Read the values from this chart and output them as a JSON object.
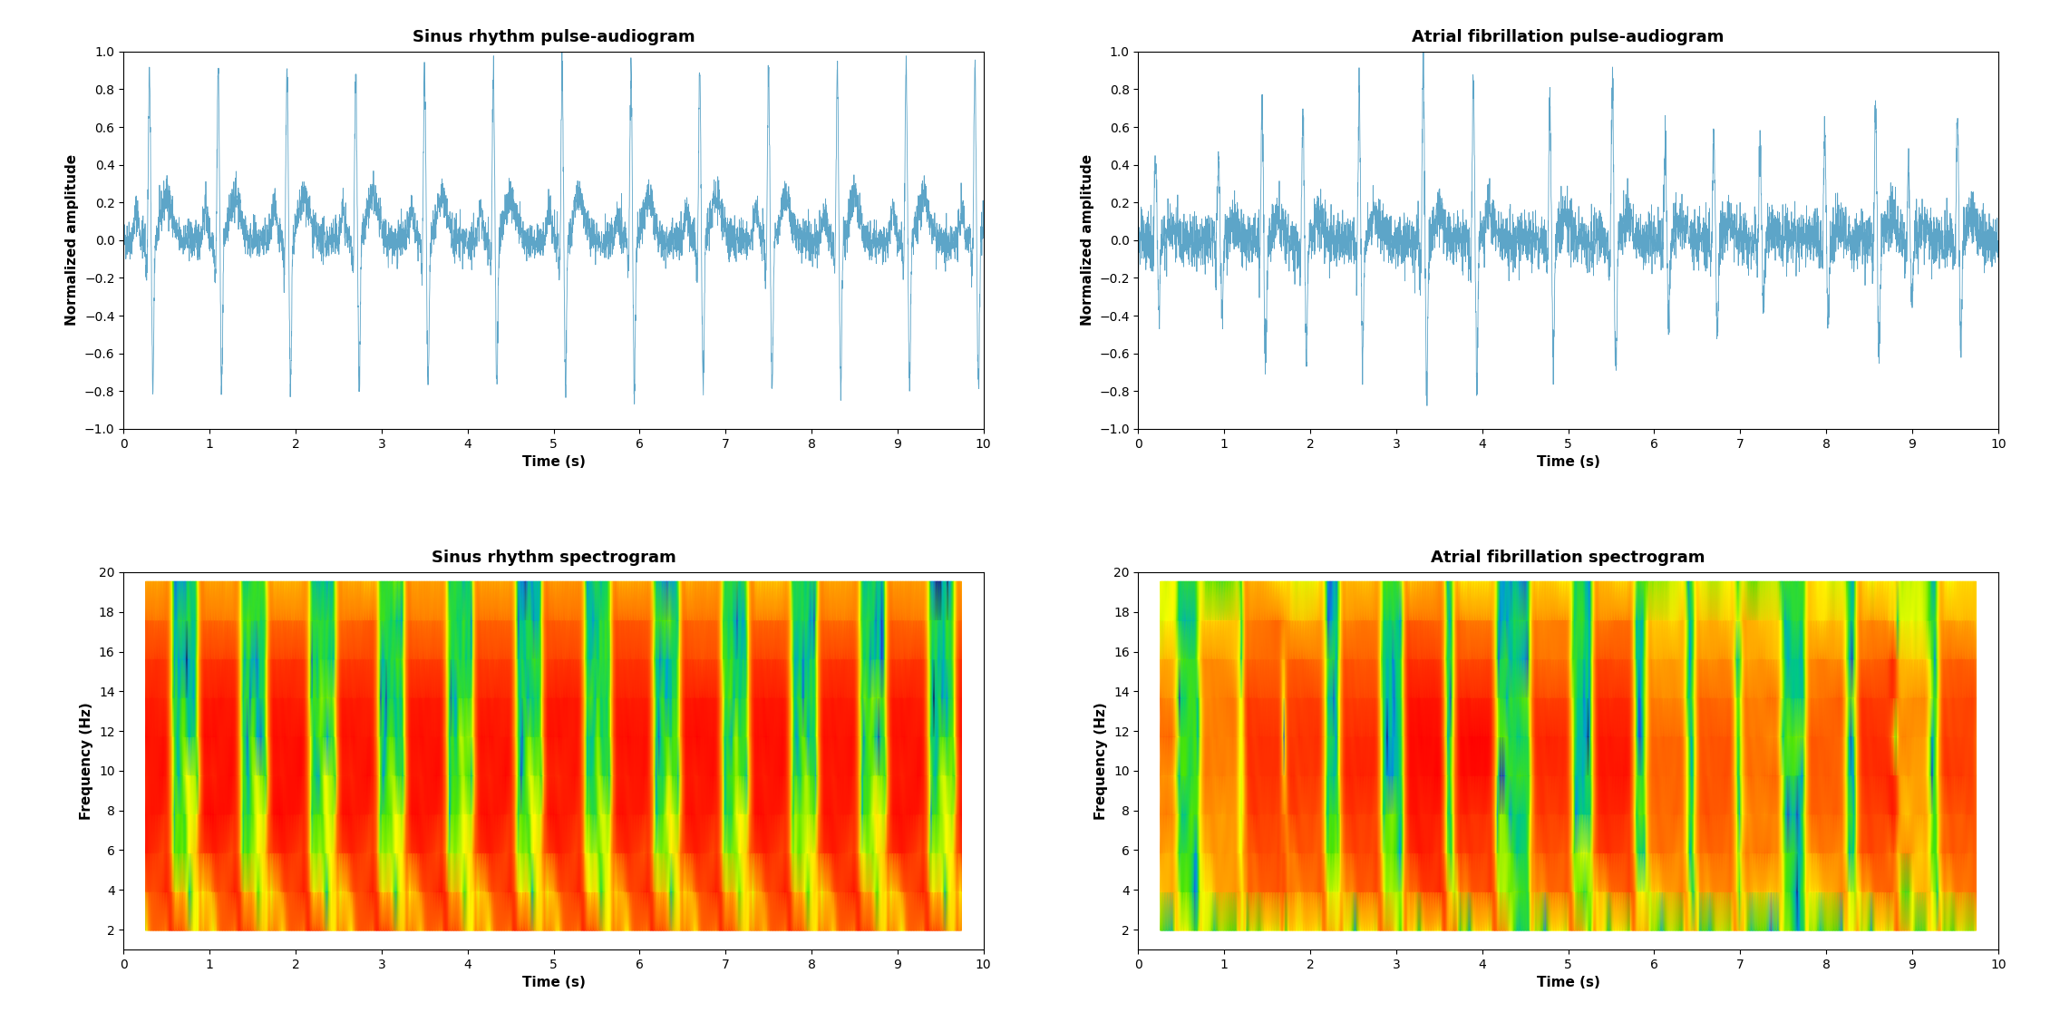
{
  "title_sinus_pulse": "Sinus rhythm pulse-audiogram",
  "title_afib_pulse": "Atrial fibrillation pulse-audiogram",
  "title_sinus_spec": "Sinus rhythm spectrogram",
  "title_afib_spec": "Atrial fibrillation spectrogram",
  "xlabel": "Time (s)",
  "ylabel_pulse": "Normalized amplitude",
  "ylabel_spec": "Frequency (Hz)",
  "xlim": [
    0,
    10
  ],
  "ylim_pulse": [
    -1,
    1
  ],
  "ylim_spec": [
    1,
    20
  ],
  "line_color": "#5DA5C8",
  "line_width": 0.6,
  "bg_color": "#ffffff",
  "title_fontsize": 13,
  "label_fontsize": 11,
  "tick_fontsize": 10,
  "sinus_hr": 75,
  "afib_hr_mean": 110
}
